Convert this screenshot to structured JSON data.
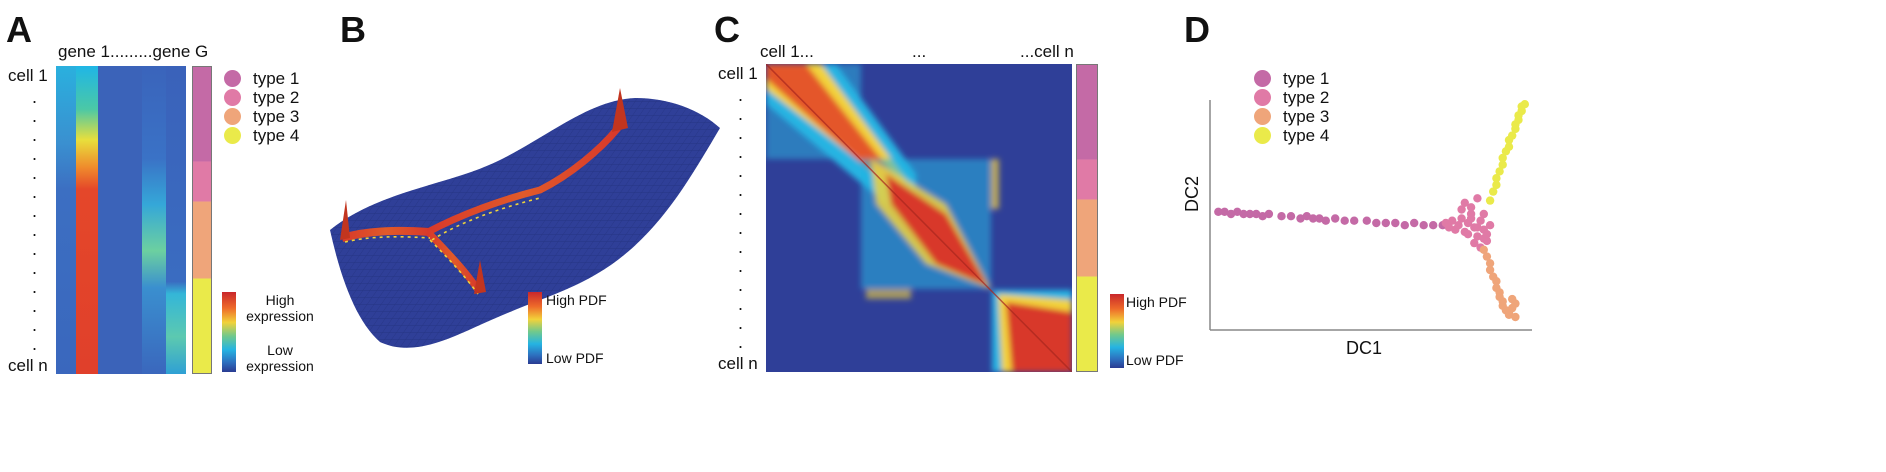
{
  "colors": {
    "type1": "#c46aa6",
    "type2": "#e07aa6",
    "type3": "#efa57a",
    "type4": "#eaea4a",
    "heat_low": "#2f3a93",
    "heat_high": "#d8392a"
  },
  "panel_a": {
    "label": "A",
    "column_header": "gene 1.........gene G",
    "row_top": "cell 1",
    "row_bottom": "cell n",
    "legend": [
      {
        "label": "type 1",
        "color_key": "type1"
      },
      {
        "label": "type 2",
        "color_key": "type2"
      },
      {
        "label": "type 3",
        "color_key": "type3"
      },
      {
        "label": "type 4",
        "color_key": "type4"
      }
    ],
    "colorbar_high": "High expression",
    "colorbar_low": "Low expression",
    "type_bar": [
      {
        "type": "type1",
        "fraction": 0.31
      },
      {
        "type": "type2",
        "fraction": 0.13
      },
      {
        "type": "type3",
        "fraction": 0.25
      },
      {
        "type": "type4",
        "fraction": 0.31
      }
    ]
  },
  "panel_b": {
    "label": "B",
    "colorbar_high": "High PDF",
    "colorbar_low": "Low PDF"
  },
  "panel_c": {
    "label": "C",
    "col_left": "cell 1...",
    "col_mid": "...",
    "col_right": "...cell n",
    "row_top": "cell 1",
    "row_bottom": "cell n",
    "colorbar_high": "High PDF",
    "colorbar_low": "Low PDF",
    "type_bar": [
      {
        "type": "type1",
        "fraction": 0.31
      },
      {
        "type": "type2",
        "fraction": 0.13
      },
      {
        "type": "type3",
        "fraction": 0.25
      },
      {
        "type": "type4",
        "fraction": 0.31
      }
    ]
  },
  "panel_d": {
    "label": "D",
    "legend": [
      {
        "label": "type 1",
        "color_key": "type1"
      },
      {
        "label": "type 2",
        "color_key": "type2"
      },
      {
        "label": "type 3",
        "color_key": "type3"
      },
      {
        "label": "type 4",
        "color_key": "type4"
      }
    ],
    "chart_data": {
      "type": "scatter",
      "xlabel": "DC1",
      "ylabel": "DC2",
      "xlim": [
        0,
        1
      ],
      "ylim": [
        0,
        1
      ],
      "grid": false,
      "legend_position": "top-left",
      "series": [
        {
          "name": "type 1",
          "color_key": "type1",
          "x": [
            0.02,
            0.04,
            0.06,
            0.08,
            0.1,
            0.12,
            0.14,
            0.16,
            0.18,
            0.22,
            0.25,
            0.28,
            0.3,
            0.32,
            0.34,
            0.36,
            0.39,
            0.42,
            0.45,
            0.49,
            0.52,
            0.55,
            0.58,
            0.61,
            0.64,
            0.67,
            0.7,
            0.73
          ],
          "y": [
            0.51,
            0.51,
            0.5,
            0.51,
            0.5,
            0.5,
            0.5,
            0.49,
            0.5,
            0.49,
            0.49,
            0.48,
            0.49,
            0.48,
            0.48,
            0.47,
            0.48,
            0.47,
            0.47,
            0.47,
            0.46,
            0.46,
            0.46,
            0.45,
            0.46,
            0.45,
            0.45,
            0.45
          ]
        },
        {
          "name": "type 2",
          "color_key": "type2",
          "x": [
            0.74,
            0.75,
            0.76,
            0.77,
            0.78,
            0.79,
            0.8,
            0.81,
            0.82,
            0.83,
            0.84,
            0.85,
            0.86,
            0.87,
            0.88,
            0.79,
            0.8,
            0.82,
            0.84,
            0.86,
            0.81,
            0.83,
            0.85,
            0.87,
            0.82,
            0.84,
            0.86
          ],
          "y": [
            0.46,
            0.44,
            0.47,
            0.43,
            0.45,
            0.48,
            0.42,
            0.46,
            0.5,
            0.44,
            0.4,
            0.47,
            0.43,
            0.38,
            0.45,
            0.52,
            0.55,
            0.53,
            0.57,
            0.5,
            0.41,
            0.37,
            0.35,
            0.41,
            0.48,
            0.44,
            0.39
          ]
        },
        {
          "name": "type 3",
          "color_key": "type3",
          "x": [
            0.86,
            0.87,
            0.88,
            0.88,
            0.89,
            0.9,
            0.9,
            0.91,
            0.91,
            0.92,
            0.92,
            0.93,
            0.94,
            0.94,
            0.95,
            0.95,
            0.96,
            0.96
          ],
          "y": [
            0.34,
            0.31,
            0.28,
            0.25,
            0.22,
            0.2,
            0.17,
            0.15,
            0.13,
            0.11,
            0.09,
            0.07,
            0.06,
            0.05,
            0.08,
            0.12,
            0.04,
            0.1
          ]
        },
        {
          "name": "type 4",
          "color_key": "type4",
          "x": [
            0.88,
            0.89,
            0.9,
            0.9,
            0.91,
            0.92,
            0.92,
            0.93,
            0.94,
            0.94,
            0.95,
            0.96,
            0.96,
            0.97,
            0.97,
            0.98,
            0.98,
            0.99
          ],
          "y": [
            0.56,
            0.6,
            0.63,
            0.66,
            0.69,
            0.72,
            0.75,
            0.78,
            0.8,
            0.83,
            0.85,
            0.88,
            0.9,
            0.92,
            0.94,
            0.96,
            0.98,
            0.99
          ]
        }
      ]
    }
  }
}
